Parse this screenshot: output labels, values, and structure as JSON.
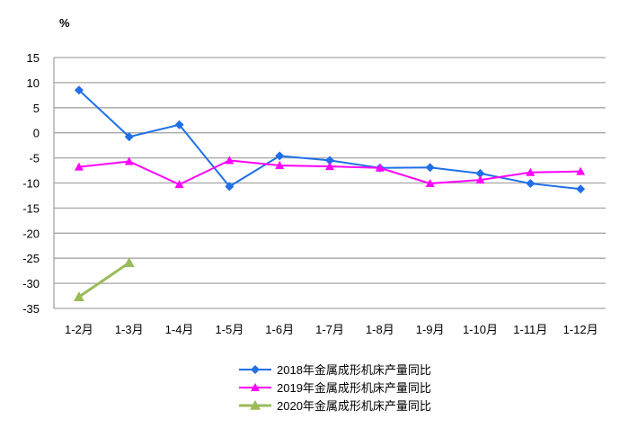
{
  "chart_data": {
    "type": "line",
    "ylabel": "%",
    "ylim": [
      -35,
      15
    ],
    "yticks": [
      15,
      10,
      5,
      0,
      -5,
      -10,
      -15,
      -20,
      -25,
      -30,
      -35
    ],
    "grid": true,
    "legend_position": "bottom",
    "categories": [
      "1-2月",
      "1-3月",
      "1-4月",
      "1-5月",
      "1-6月",
      "1-7月",
      "1-8月",
      "1-9月",
      "1-10月",
      "1-11月",
      "1-12月"
    ],
    "series": [
      {
        "name": "2018年金属成形机床产量同比",
        "color": "#1F6FE8",
        "marker": "diamond",
        "values": [
          8.5,
          -0.8,
          1.6,
          -10.7,
          -4.6,
          -5.5,
          -7.0,
          -6.9,
          -8.1,
          -10.1,
          -11.2
        ]
      },
      {
        "name": "2019年金属成形机床产量同比",
        "color": "#FF00FF",
        "marker": "triangle",
        "values": [
          -6.8,
          -5.7,
          -10.3,
          -5.5,
          -6.5,
          -6.7,
          -7.0,
          -10.1,
          -9.4,
          -7.9,
          -7.7
        ]
      },
      {
        "name": "2020年金属成形机床产量同比",
        "color": "#9BBB59",
        "marker": "triangle",
        "values": [
          -32.7,
          -25.9,
          null,
          null,
          null,
          null,
          null,
          null,
          null,
          null,
          null
        ]
      }
    ]
  }
}
